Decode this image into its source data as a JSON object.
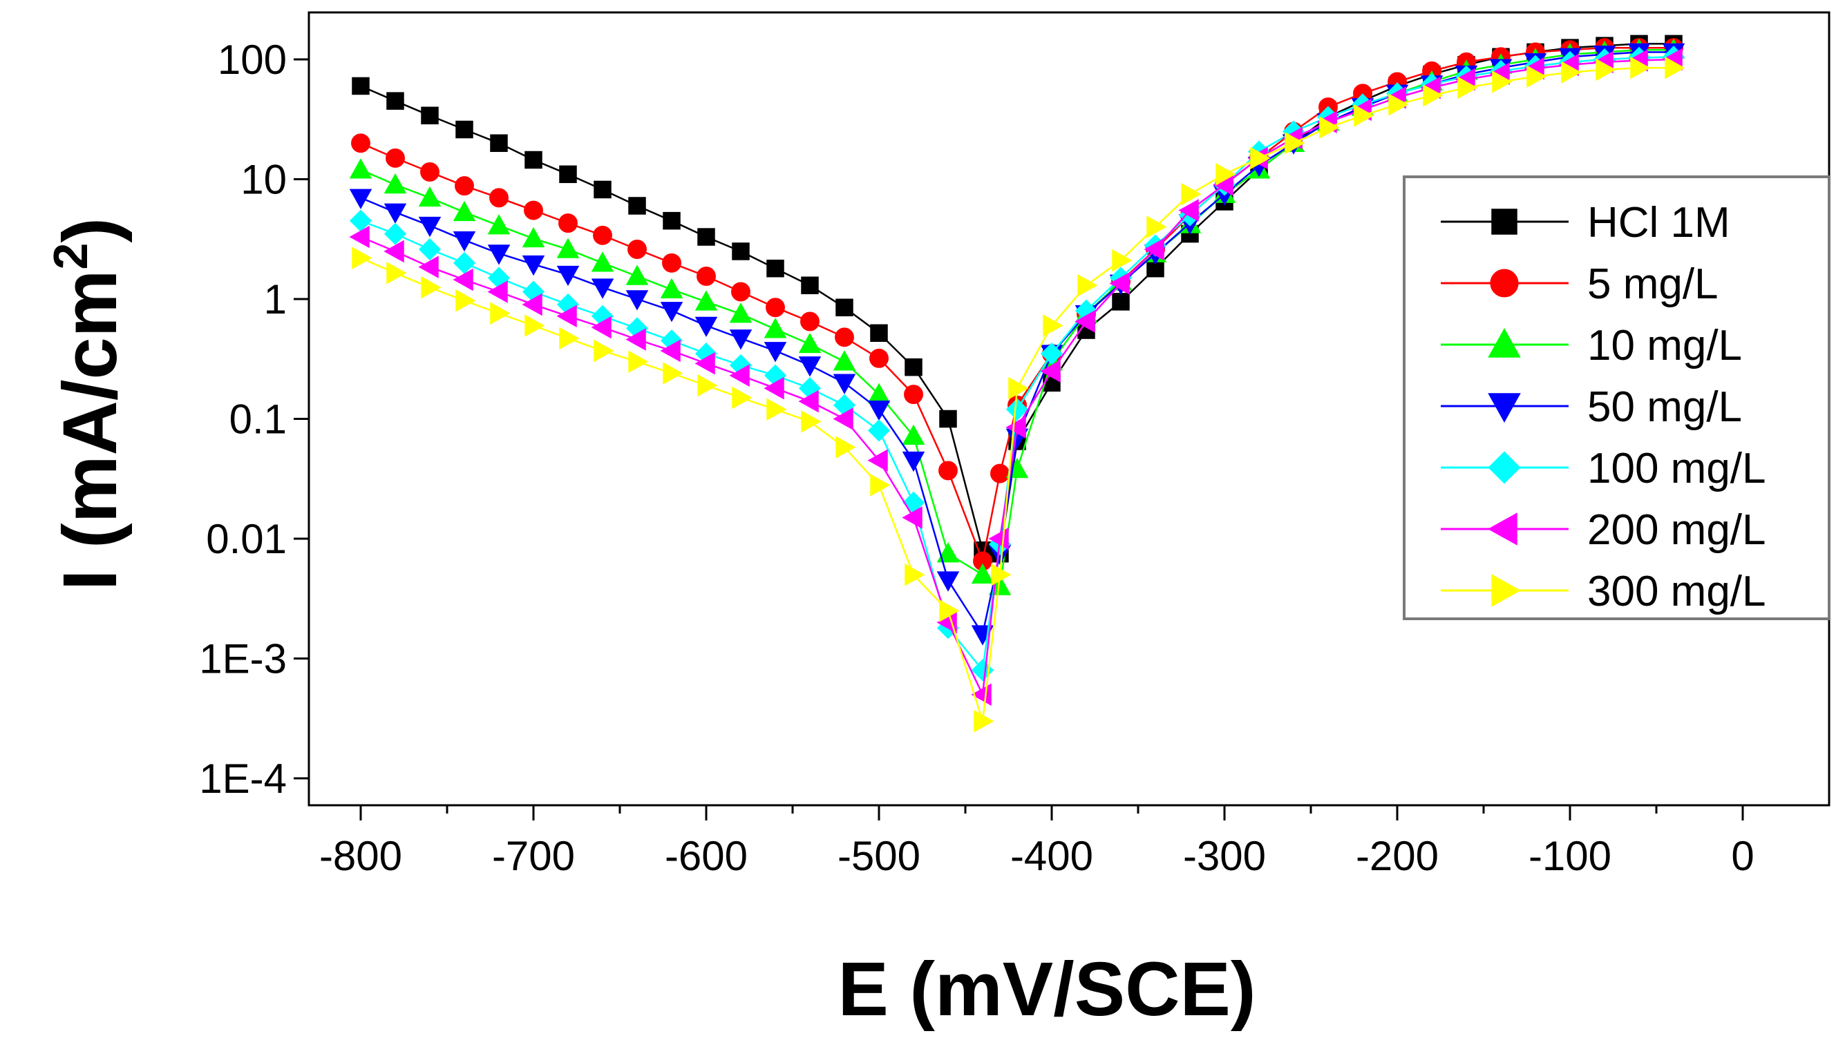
{
  "chart_data": {
    "type": "scatter",
    "title": "",
    "xlabel": "E (mV/SCE)",
    "ylabel_main": "I (mA/cm",
    "ylabel_sup": "2",
    "ylabel_close": ")",
    "ylabel": "I (mA/cm2)",
    "yscale": "log",
    "xlim": [
      -830,
      50
    ],
    "ylim": [
      5e-05,
      200
    ],
    "x_ticks": [
      -800,
      -700,
      -600,
      -500,
      -400,
      -300,
      -200,
      -100,
      0
    ],
    "x_tick_labels": [
      "-800",
      "-700",
      "-600",
      "-500",
      "-400",
      "-300",
      "-200",
      "-100",
      "0"
    ],
    "y_ticks": [
      0.0001,
      0.001,
      0.01,
      0.1,
      1,
      10,
      100
    ],
    "y_tick_labels": [
      "1E-4",
      "1E-3",
      "0.01",
      "0.1",
      "1",
      "10",
      "100"
    ],
    "legend_position": "right",
    "grid": false,
    "series": [
      {
        "name": "HCl 1M",
        "color": "#000000",
        "marker": "square",
        "x": [
          -800,
          -780,
          -760,
          -740,
          -720,
          -700,
          -680,
          -660,
          -640,
          -620,
          -600,
          -580,
          -560,
          -540,
          -520,
          -500,
          -480,
          -460,
          -440,
          -430,
          -420,
          -400,
          -380,
          -360,
          -340,
          -320,
          -300,
          -280,
          -260,
          -240,
          -220,
          -200,
          -180,
          -160,
          -140,
          -120,
          -100,
          -80,
          -60,
          -40
        ],
        "y": [
          60,
          45,
          34,
          26,
          20,
          14.5,
          11,
          8.2,
          6,
          4.5,
          3.3,
          2.5,
          1.8,
          1.3,
          0.85,
          0.52,
          0.27,
          0.1,
          0.008,
          0.0075,
          0.065,
          0.2,
          0.55,
          0.95,
          1.8,
          3.5,
          6.5,
          12,
          20,
          33,
          45,
          60,
          75,
          90,
          105,
          115,
          125,
          130,
          135,
          135
        ]
      },
      {
        "name": "5 mg/L",
        "color": "#ff0000",
        "marker": "circle",
        "x": [
          -800,
          -780,
          -760,
          -740,
          -720,
          -700,
          -680,
          -660,
          -640,
          -620,
          -600,
          -580,
          -560,
          -540,
          -520,
          -500,
          -480,
          -460,
          -440,
          -430,
          -420,
          -400,
          -380,
          -360,
          -340,
          -320,
          -300,
          -280,
          -260,
          -240,
          -220,
          -200,
          -180,
          -160,
          -140,
          -120,
          -100,
          -80,
          -60,
          -40
        ],
        "y": [
          20,
          15,
          11.5,
          8.8,
          7,
          5.5,
          4.3,
          3.4,
          2.6,
          2,
          1.55,
          1.15,
          0.85,
          0.65,
          0.48,
          0.32,
          0.16,
          0.037,
          0.0065,
          0.035,
          0.13,
          0.35,
          0.75,
          1.4,
          2.6,
          5,
          9,
          15,
          25,
          40,
          52,
          65,
          80,
          95,
          105,
          115,
          120,
          125,
          125,
          125
        ]
      },
      {
        "name": "10 mg/L",
        "color": "#00ff00",
        "marker": "triangle-up",
        "x": [
          -800,
          -780,
          -760,
          -740,
          -720,
          -700,
          -680,
          -660,
          -640,
          -620,
          -600,
          -580,
          -560,
          -540,
          -520,
          -500,
          -480,
          -460,
          -440,
          -430,
          -420,
          -400,
          -380,
          -360,
          -340,
          -320,
          -300,
          -280,
          -260,
          -240,
          -220,
          -200,
          -180,
          -160,
          -140,
          -120,
          -100,
          -80,
          -60,
          -40
        ],
        "y": [
          12,
          9,
          7,
          5.3,
          4.1,
          3.2,
          2.6,
          2,
          1.55,
          1.2,
          0.95,
          0.75,
          0.56,
          0.42,
          0.3,
          0.16,
          0.072,
          0.0075,
          0.005,
          0.004,
          0.038,
          0.3,
          0.75,
          1.4,
          2.4,
          4.2,
          7.5,
          12,
          20,
          30,
          40,
          52,
          65,
          80,
          90,
          100,
          110,
          115,
          120,
          120
        ]
      },
      {
        "name": "50 mg/L",
        "color": "#0000ff",
        "marker": "triangle-down",
        "x": [
          -800,
          -780,
          -760,
          -740,
          -720,
          -700,
          -680,
          -660,
          -640,
          -620,
          -600,
          -580,
          -560,
          -540,
          -520,
          -500,
          -480,
          -460,
          -440,
          -430,
          -420,
          -400,
          -380,
          -360,
          -340,
          -320,
          -300,
          -280,
          -260,
          -240,
          -220,
          -200,
          -180,
          -160,
          -140,
          -120,
          -100,
          -80,
          -60,
          -40
        ],
        "y": [
          7,
          5.3,
          4.1,
          3.1,
          2.4,
          1.95,
          1.6,
          1.25,
          1,
          0.8,
          0.6,
          0.47,
          0.37,
          0.28,
          0.2,
          0.12,
          0.045,
          0.0045,
          0.0016,
          0.0075,
          0.07,
          0.35,
          0.75,
          1.35,
          2.4,
          4.3,
          7.5,
          13,
          20,
          30,
          40,
          52,
          62,
          75,
          85,
          95,
          105,
          110,
          115,
          115
        ]
      },
      {
        "name": "100 mg/L",
        "color": "#00ffff",
        "marker": "diamond",
        "x": [
          -800,
          -780,
          -760,
          -740,
          -720,
          -700,
          -680,
          -660,
          -640,
          -620,
          -600,
          -580,
          -560,
          -540,
          -520,
          -500,
          -480,
          -460,
          -440,
          -430,
          -420,
          -400,
          -380,
          -360,
          -340,
          -320,
          -300,
          -280,
          -260,
          -240,
          -220,
          -200,
          -180,
          -160,
          -140,
          -120,
          -100,
          -80,
          -60,
          -40
        ],
        "y": [
          4.5,
          3.5,
          2.6,
          2,
          1.5,
          1.15,
          0.9,
          0.72,
          0.57,
          0.45,
          0.35,
          0.28,
          0.23,
          0.18,
          0.13,
          0.08,
          0.02,
          0.0018,
          0.0008,
          0.009,
          0.12,
          0.35,
          0.8,
          1.5,
          2.8,
          5,
          9,
          17,
          25,
          33,
          42,
          52,
          62,
          72,
          80,
          88,
          95,
          100,
          103,
          105
        ]
      },
      {
        "name": "200 mg/L",
        "color": "#ff00ff",
        "marker": "triangle-left",
        "x": [
          -800,
          -780,
          -760,
          -740,
          -720,
          -700,
          -680,
          -660,
          -640,
          -620,
          -600,
          -580,
          -560,
          -540,
          -520,
          -500,
          -480,
          -460,
          -440,
          -430,
          -420,
          -400,
          -380,
          -360,
          -340,
          -320,
          -300,
          -280,
          -260,
          -240,
          -220,
          -200,
          -180,
          -160,
          -140,
          -120,
          -100,
          -80,
          -60,
          -40
        ],
        "y": [
          3.3,
          2.5,
          1.85,
          1.45,
          1.15,
          0.9,
          0.72,
          0.58,
          0.46,
          0.37,
          0.29,
          0.23,
          0.18,
          0.14,
          0.1,
          0.045,
          0.015,
          0.002,
          0.0005,
          0.01,
          0.085,
          0.25,
          0.65,
          1.35,
          2.6,
          5.5,
          9,
          15,
          22,
          30,
          38,
          48,
          58,
          68,
          76,
          84,
          90,
          95,
          98,
          100
        ]
      },
      {
        "name": "300 mg/L",
        "color": "#ffff00",
        "marker": "triangle-right",
        "x": [
          -800,
          -780,
          -760,
          -740,
          -720,
          -700,
          -680,
          -660,
          -640,
          -620,
          -600,
          -580,
          -560,
          -540,
          -520,
          -500,
          -480,
          -460,
          -440,
          -430,
          -420,
          -400,
          -380,
          -360,
          -340,
          -320,
          -300,
          -280,
          -260,
          -240,
          -220,
          -200,
          -180,
          -160,
          -140,
          -120,
          -100,
          -80,
          -60,
          -40
        ],
        "y": [
          2.2,
          1.65,
          1.25,
          0.97,
          0.76,
          0.6,
          0.47,
          0.37,
          0.3,
          0.24,
          0.19,
          0.15,
          0.12,
          0.095,
          0.058,
          0.028,
          0.005,
          0.0025,
          0.0003,
          0.005,
          0.18,
          0.6,
          1.3,
          2.1,
          4,
          7.5,
          11,
          15,
          20,
          27,
          34,
          42,
          50,
          58,
          65,
          72,
          78,
          82,
          85,
          85
        ]
      }
    ]
  }
}
